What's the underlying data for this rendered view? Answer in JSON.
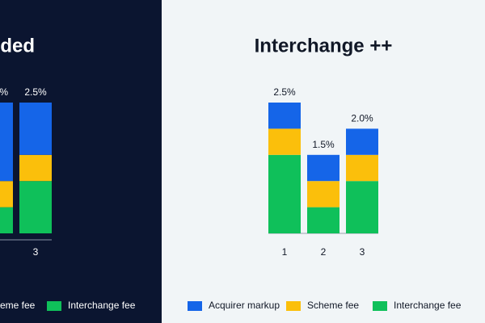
{
  "chart_data": [
    {
      "type": "bar",
      "stacked": true,
      "title": "ded",
      "categories": [
        null,
        "3"
      ],
      "series": [
        {
          "name": null,
          "color": "#1565e8",
          "values": [
            1.5,
            1.0
          ]
        },
        {
          "name": "eme fee",
          "color": "#fbbf0b",
          "values": [
            0.5,
            0.5
          ]
        },
        {
          "name": "Interchange fee",
          "color": "#0fc05a",
          "values": [
            0.5,
            1.0
          ]
        }
      ],
      "totals": [
        2.5,
        2.5
      ],
      "value_labels": [
        "%",
        "2.5%"
      ]
    },
    {
      "type": "bar",
      "stacked": true,
      "title": "Interchange ++",
      "categories": [
        "1",
        "2",
        "3"
      ],
      "series": [
        {
          "name": "Acquirer markup",
          "color": "#1565e8",
          "values": [
            0.5,
            0.5,
            0.5
          ]
        },
        {
          "name": "Scheme fee",
          "color": "#fbbf0b",
          "values": [
            0.5,
            0.5,
            0.5
          ]
        },
        {
          "name": "Interchange fee",
          "color": "#0fc05a",
          "values": [
            1.5,
            0.5,
            1.0
          ]
        }
      ],
      "totals": [
        2.5,
        1.5,
        2.0
      ],
      "value_labels": [
        "2.5%",
        "1.5%",
        "2.0%"
      ]
    }
  ]
}
